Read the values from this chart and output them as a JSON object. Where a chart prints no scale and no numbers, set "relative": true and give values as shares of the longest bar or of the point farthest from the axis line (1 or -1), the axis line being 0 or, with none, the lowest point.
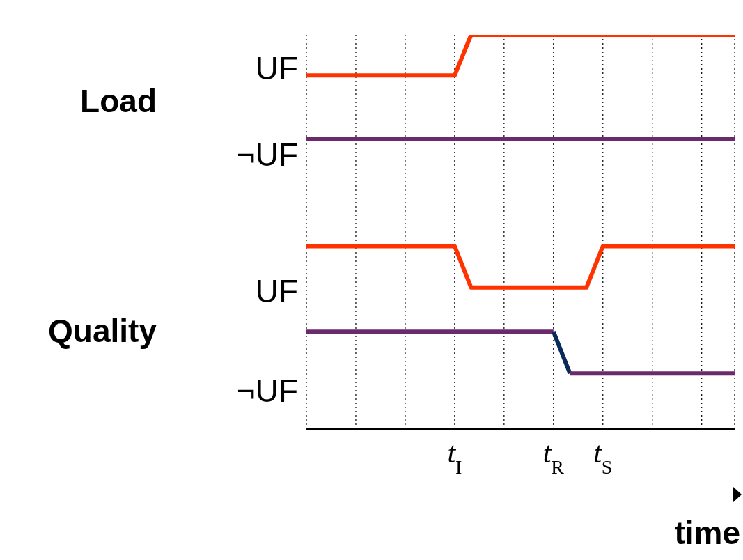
{
  "chart_data": {
    "type": "line",
    "relative": true,
    "xlabel": "time",
    "categories": [
      null,
      null,
      null,
      null,
      null,
      null,
      null,
      null,
      null,
      "t$_{I}$",
      null,
      null,
      null,
      null,
      null,
      "t$_{R}$",
      null,
      null,
      "t$_{S}$",
      null,
      null,
      null,
      null,
      null,
      null,
      null,
      null
    ],
    "grid": "x",
    "line_style": "solid",
    "series": [
      {
        "name": "UF",
        "color": "#ff3300",
        "values": [
          0.897,
          0.897,
          0.897,
          0.897,
          0.897,
          0.897,
          0.897,
          0.897,
          0.897,
          0.897,
          1,
          1,
          1,
          1,
          1,
          1,
          1,
          1,
          1,
          1,
          1,
          1,
          1,
          1,
          1,
          1,
          1
        ]
      },
      {
        "name": "¬UF",
        "color": "#6b2a6b",
        "values": [
          0.735,
          0.735,
          0.735,
          0.735,
          0.735,
          0.735,
          0.735,
          0.735,
          0.735,
          0.735,
          0.735,
          0.735,
          0.735,
          0.735,
          0.735,
          0.735,
          0.735,
          0.735,
          0.735,
          0.735,
          0.735,
          0.735,
          0.735,
          0.735,
          0.735,
          0.735,
          0.735
        ]
      },
      {
        "name": "UF",
        "color": "#ff3300",
        "values": [
          0.464,
          0.464,
          0.464,
          0.464,
          0.464,
          0.464,
          0.464,
          0.464,
          0.464,
          0.464,
          0.359,
          0.359,
          0.359,
          0.359,
          0.359,
          0.359,
          0.359,
          0.359,
          0.464,
          0.464,
          0.464,
          0.464,
          0.464,
          0.464,
          0.464,
          0.464,
          0.464
        ]
      },
      {
        "name": "¬UF",
        "color": "#6b2a6b",
        "values": [
          0.247,
          0.247,
          0.247,
          0.247,
          0.247,
          0.247,
          0.247,
          0.247,
          0.247,
          0.247,
          0.247,
          0.247,
          0.247,
          0.247,
          0.247,
          0.247,
          null,
          null,
          null,
          null,
          null,
          null,
          null,
          null,
          null,
          null,
          null
        ]
      },
      {
        "color": "#0a2a5a",
        "values": [
          null,
          null,
          null,
          null,
          null,
          null,
          null,
          null,
          null,
          null,
          null,
          null,
          null,
          null,
          null,
          0.247,
          0.141,
          null,
          null,
          null,
          null,
          null,
          null,
          null,
          null,
          null,
          null
        ]
      },
      {
        "color": "#6b2a6b",
        "values": [
          null,
          null,
          null,
          null,
          null,
          null,
          null,
          null,
          null,
          null,
          null,
          null,
          null,
          null,
          null,
          null,
          0.141,
          0.141,
          0.141,
          0.141,
          0.141,
          0.141,
          0.141,
          0.141,
          0.141,
          0.141,
          0.141
        ]
      }
    ],
    "annotations": [
      "Load",
      "Quality"
    ]
  }
}
